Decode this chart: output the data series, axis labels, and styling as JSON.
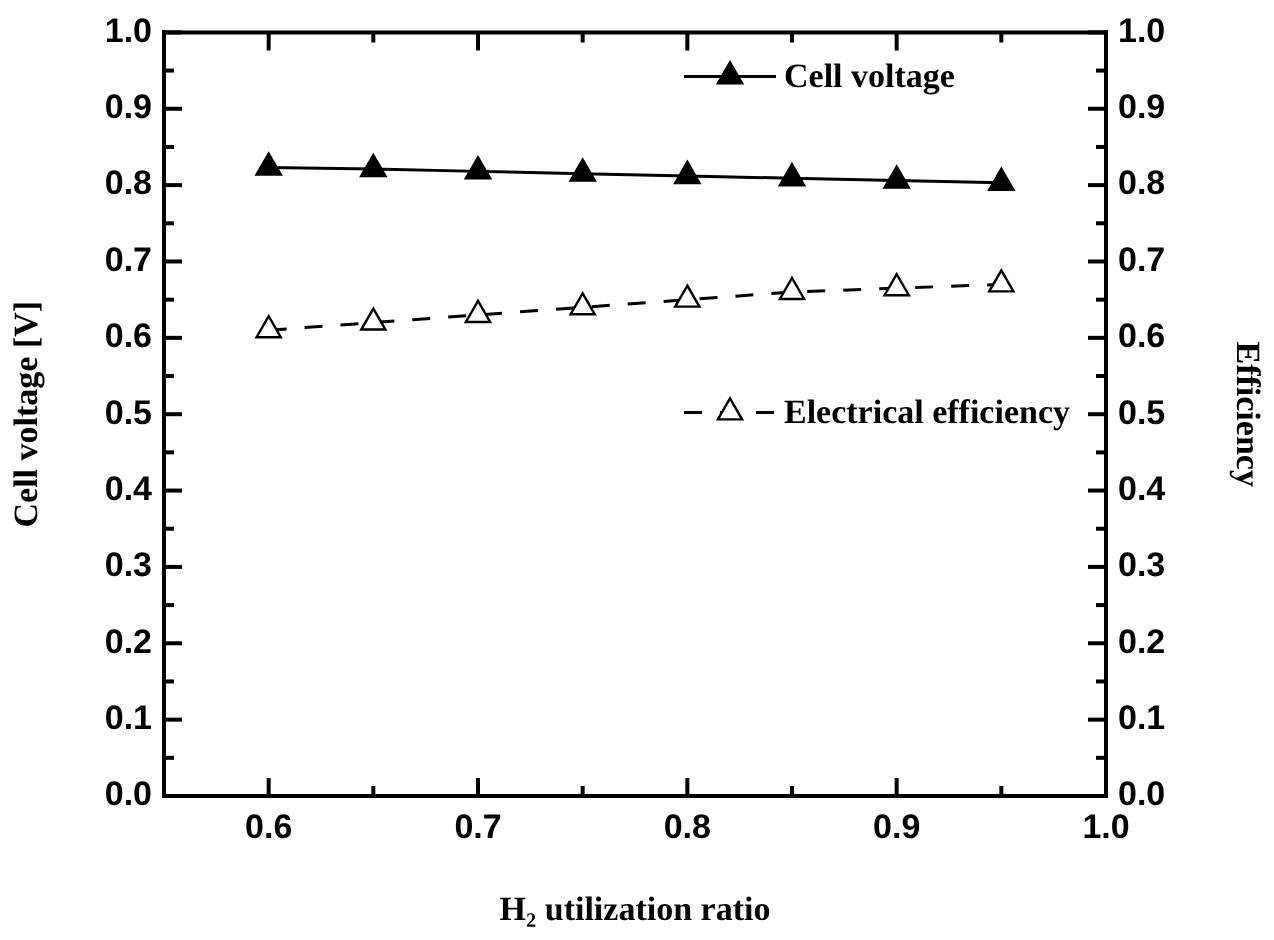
{
  "chart_data": {
    "type": "line",
    "xlabel": "H₂ utilization ratio",
    "ylabel": "Cell voltage [V]",
    "y2label": "Efficiency",
    "x": [
      0.6,
      0.65,
      0.7,
      0.75,
      0.8,
      0.85,
      0.9,
      0.95
    ],
    "series": [
      {
        "name": "Cell voltage",
        "color": "#000000",
        "values": [
          0.823,
          0.821,
          0.818,
          0.815,
          0.812,
          0.809,
          0.806,
          0.803
        ],
        "line_style": "solid"
      },
      {
        "name": "Electrical efficiency",
        "color": "#000000",
        "values": [
          0.61,
          0.62,
          0.63,
          0.64,
          0.65,
          0.66,
          0.665,
          0.67
        ],
        "line_style": "dashed",
        "axis": "y2"
      }
    ],
    "xlim": [
      0.55,
      1.0
    ],
    "xticks": [
      {
        "value": 0.6,
        "label": "0.6"
      },
      {
        "value": 0.65,
        "label": null
      },
      {
        "value": 0.7,
        "label": "0.7"
      },
      {
        "value": 0.75,
        "label": null
      },
      {
        "value": 0.8,
        "label": "0.8"
      },
      {
        "value": 0.85,
        "label": null
      },
      {
        "value": 0.9,
        "label": "0.9"
      },
      {
        "value": 0.95,
        "label": null
      },
      {
        "value": 1.0,
        "label": "1.0"
      }
    ],
    "ylim": [
      0,
      1
    ],
    "yticks": [
      {
        "value": 0,
        "label": "0.0"
      },
      {
        "value": 0.05,
        "label": null
      },
      {
        "value": 0.1,
        "label": "0.1"
      },
      {
        "value": 0.15,
        "label": null
      },
      {
        "value": 0.2,
        "label": "0.2"
      },
      {
        "value": 0.25,
        "label": null
      },
      {
        "value": 0.3,
        "label": "0.3"
      },
      {
        "value": 0.35,
        "label": null
      },
      {
        "value": 0.4,
        "label": "0.4"
      },
      {
        "value": 0.45,
        "label": null
      },
      {
        "value": 0.5,
        "label": "0.5"
      },
      {
        "value": 0.55,
        "label": null
      },
      {
        "value": 0.6,
        "label": "0.6"
      },
      {
        "value": 0.65,
        "label": null
      },
      {
        "value": 0.7,
        "label": "0.7"
      },
      {
        "value": 0.75,
        "label": null
      },
      {
        "value": 0.8,
        "label": "0.8"
      },
      {
        "value": 0.85,
        "label": null
      },
      {
        "value": 0.9,
        "label": "0.9"
      },
      {
        "value": 0.95,
        "label": null
      },
      {
        "value": 1.0,
        "label": "1.0"
      }
    ],
    "y2lim": [
      0,
      1
    ],
    "y2ticks": [
      {
        "value": 0,
        "label": "0.0"
      },
      {
        "value": 0.05,
        "label": null
      },
      {
        "value": 0.1,
        "label": "0.1"
      },
      {
        "value": 0.15,
        "label": null
      },
      {
        "value": 0.2,
        "label": "0.2"
      },
      {
        "value": 0.25,
        "label": null
      },
      {
        "value": 0.3,
        "label": "0.3"
      },
      {
        "value": 0.35,
        "label": null
      },
      {
        "value": 0.4,
        "label": "0.4"
      },
      {
        "value": 0.45,
        "label": null
      },
      {
        "value": 0.5,
        "label": "0.5"
      },
      {
        "value": 0.55,
        "label": null
      },
      {
        "value": 0.6,
        "label": "0.6"
      },
      {
        "value": 0.65,
        "label": null
      },
      {
        "value": 0.7,
        "label": "0.7"
      },
      {
        "value": 0.75,
        "label": null
      },
      {
        "value": 0.8,
        "label": "0.8"
      },
      {
        "value": 0.85,
        "label": null
      },
      {
        "value": 0.9,
        "label": "0.9"
      },
      {
        "value": 0.95,
        "label": null
      },
      {
        "value": 1.0,
        "label": "1.0"
      }
    ],
    "marker": "triangle",
    "grid": false,
    "legend": "top right"
  }
}
